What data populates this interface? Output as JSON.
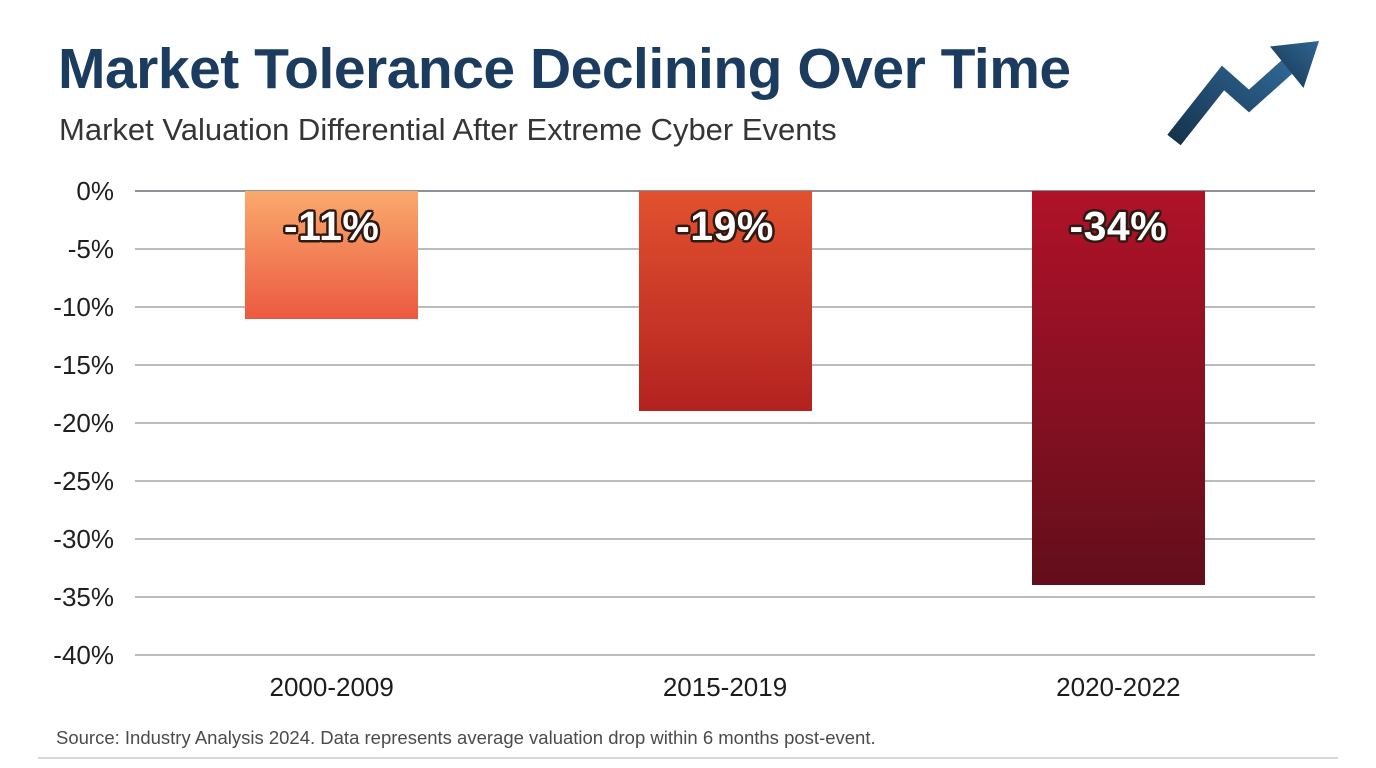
{
  "header": {
    "title": "Market Tolerance Declining Over Time",
    "subtitle": "Market Valuation Differential After Extreme Cyber Events"
  },
  "icons": {
    "trend_arrow": "zigzag-up-right-trend-arrow"
  },
  "colors": {
    "title": "#1B3C5F",
    "subtitle": "#353535",
    "arrow_dark": "#16334E",
    "arrow_light": "#2F6693",
    "axis_text": "#1f1f1f",
    "gridline": "#b9bcbe",
    "gridline_zero": "#8e9296",
    "source_text": "#4b4b4b",
    "bar_label_text": "#ffffff",
    "bar_label_outline": "#2e1a12"
  },
  "chart_data": {
    "type": "bar",
    "title": "Market Tolerance Declining Over Time",
    "subtitle": "Market Valuation Differential After Extreme Cyber Events",
    "categories": [
      "2000-2009",
      "2015-2019",
      "2020-2022"
    ],
    "values": [
      -11,
      -19,
      -34
    ],
    "bar_labels": [
      "-11%",
      "-19%",
      "-34%"
    ],
    "xlabel": "",
    "ylabel": "",
    "ylim": [
      -40,
      0
    ],
    "ytick_step": 5,
    "yticks": [
      "0%",
      "-5%",
      "-10%",
      "-15%",
      "-20%",
      "-25%",
      "-30%",
      "-35%",
      "-40%"
    ],
    "grid": true,
    "legend": "none",
    "bar_gradients": [
      {
        "top": "#F9AA6D",
        "bottom": "#EC5940"
      },
      {
        "top": "#E2512E",
        "bottom": "#B32220"
      },
      {
        "top": "#B01229",
        "bottom": "#620E1B"
      }
    ]
  },
  "footer": {
    "source": "Source: Industry Analysis 2024. Data represents average valuation drop within 6 months post-event."
  }
}
